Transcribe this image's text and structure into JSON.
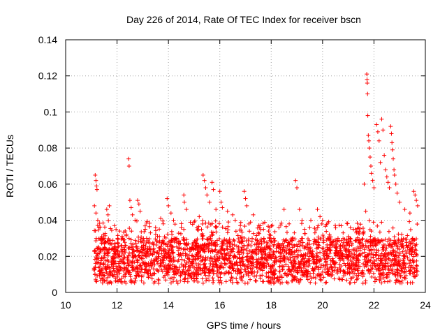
{
  "chart_data": {
    "type": "scatter",
    "title": "Day 226 of 2014, Rate Of TEC Index for receiver bscn",
    "xlabel": "GPS time / hours",
    "ylabel": "ROTI / TECUs",
    "xlim": [
      10,
      24
    ],
    "ylim": [
      0,
      0.14
    ],
    "xticks": [
      10,
      12,
      14,
      16,
      18,
      20,
      22,
      24
    ],
    "yticks": [
      0,
      0.02,
      0.04,
      0.06,
      0.08,
      0.1,
      0.12,
      0.14
    ],
    "xtick_labels": [
      "10",
      "12",
      "14",
      "16",
      "18",
      "20",
      "22",
      "24"
    ],
    "ytick_labels": [
      "0",
      "0.02",
      "0.04",
      "0.06",
      "0.08",
      "0.1",
      "0.12",
      "0.14"
    ],
    "grid": true,
    "marker": "plus",
    "color": "#ff0000",
    "x_range_observed": [
      11.1,
      23.7
    ],
    "points": [
      [
        11.15,
        0.065
      ],
      [
        11.18,
        0.062
      ],
      [
        11.2,
        0.059
      ],
      [
        11.22,
        0.057
      ],
      [
        11.12,
        0.048
      ],
      [
        11.18,
        0.044
      ],
      [
        11.25,
        0.04
      ],
      [
        11.3,
        0.036
      ],
      [
        11.6,
        0.046
      ],
      [
        11.65,
        0.043
      ],
      [
        11.7,
        0.048
      ],
      [
        11.9,
        0.037
      ],
      [
        12.1,
        0.034
      ],
      [
        12.2,
        0.031
      ],
      [
        12.45,
        0.074
      ],
      [
        12.47,
        0.07
      ],
      [
        12.5,
        0.051
      ],
      [
        12.55,
        0.047
      ],
      [
        12.6,
        0.043
      ],
      [
        12.7,
        0.04
      ],
      [
        12.8,
        0.051
      ],
      [
        12.85,
        0.049
      ],
      [
        12.9,
        0.045
      ],
      [
        13.1,
        0.035
      ],
      [
        13.3,
        0.033
      ],
      [
        13.5,
        0.036
      ],
      [
        13.7,
        0.041
      ],
      [
        13.8,
        0.038
      ],
      [
        13.95,
        0.052
      ],
      [
        14.0,
        0.048
      ],
      [
        14.1,
        0.044
      ],
      [
        14.2,
        0.04
      ],
      [
        14.5,
        0.036
      ],
      [
        14.6,
        0.054
      ],
      [
        14.62,
        0.05
      ],
      [
        14.7,
        0.046
      ],
      [
        15.0,
        0.039
      ],
      [
        15.2,
        0.042
      ],
      [
        15.35,
        0.065
      ],
      [
        15.4,
        0.062
      ],
      [
        15.45,
        0.058
      ],
      [
        15.5,
        0.054
      ],
      [
        15.6,
        0.05
      ],
      [
        15.7,
        0.061
      ],
      [
        15.75,
        0.057
      ],
      [
        15.85,
        0.046
      ],
      [
        16.0,
        0.056
      ],
      [
        16.05,
        0.05
      ],
      [
        16.1,
        0.047
      ],
      [
        16.3,
        0.045
      ],
      [
        16.5,
        0.043
      ],
      [
        16.6,
        0.04
      ],
      [
        16.8,
        0.037
      ],
      [
        16.95,
        0.056
      ],
      [
        17.0,
        0.052
      ],
      [
        17.05,
        0.048
      ],
      [
        17.3,
        0.043
      ],
      [
        17.5,
        0.033
      ],
      [
        17.7,
        0.035
      ],
      [
        17.9,
        0.034
      ],
      [
        18.1,
        0.03
      ],
      [
        18.3,
        0.036
      ],
      [
        18.5,
        0.046
      ],
      [
        18.7,
        0.038
      ],
      [
        18.9,
        0.033
      ],
      [
        18.95,
        0.062
      ],
      [
        19.0,
        0.058
      ],
      [
        19.1,
        0.046
      ],
      [
        19.2,
        0.04
      ],
      [
        19.3,
        0.035
      ],
      [
        19.5,
        0.036
      ],
      [
        19.7,
        0.033
      ],
      [
        19.8,
        0.046
      ],
      [
        19.9,
        0.042
      ],
      [
        20.0,
        0.04
      ],
      [
        20.2,
        0.03
      ],
      [
        20.4,
        0.028
      ],
      [
        20.6,
        0.03
      ],
      [
        20.8,
        0.033
      ],
      [
        21.0,
        0.031
      ],
      [
        21.2,
        0.035
      ],
      [
        21.4,
        0.033
      ],
      [
        21.62,
        0.06
      ],
      [
        21.68,
        0.045
      ],
      [
        21.72,
        0.121
      ],
      [
        21.73,
        0.118
      ],
      [
        21.74,
        0.116
      ],
      [
        21.75,
        0.11
      ],
      [
        21.76,
        0.098
      ],
      [
        21.78,
        0.087
      ],
      [
        21.8,
        0.084
      ],
      [
        21.82,
        0.08
      ],
      [
        21.85,
        0.075
      ],
      [
        21.88,
        0.07
      ],
      [
        21.9,
        0.066
      ],
      [
        21.95,
        0.062
      ],
      [
        22.0,
        0.058
      ],
      [
        22.1,
        0.093
      ],
      [
        22.15,
        0.089
      ],
      [
        22.2,
        0.084
      ],
      [
        22.25,
        0.072
      ],
      [
        22.3,
        0.096
      ],
      [
        22.35,
        0.09
      ],
      [
        22.4,
        0.076
      ],
      [
        22.45,
        0.068
      ],
      [
        22.5,
        0.064
      ],
      [
        22.55,
        0.061
      ],
      [
        22.6,
        0.058
      ],
      [
        22.65,
        0.092
      ],
      [
        22.68,
        0.088
      ],
      [
        22.7,
        0.083
      ],
      [
        22.72,
        0.079
      ],
      [
        22.75,
        0.074
      ],
      [
        22.78,
        0.068
      ],
      [
        22.8,
        0.065
      ],
      [
        22.85,
        0.06
      ],
      [
        22.9,
        0.055
      ],
      [
        23.0,
        0.05
      ],
      [
        23.2,
        0.046
      ],
      [
        23.4,
        0.044
      ],
      [
        23.55,
        0.056
      ],
      [
        23.6,
        0.054
      ],
      [
        23.65,
        0.051
      ],
      [
        23.7,
        0.048
      ]
    ],
    "dense_band": {
      "x_start": 11.1,
      "x_end": 23.7,
      "y_min": 0.005,
      "y_typical_low": 0.01,
      "y_typical_high": 0.03,
      "y_max": 0.04
    }
  }
}
